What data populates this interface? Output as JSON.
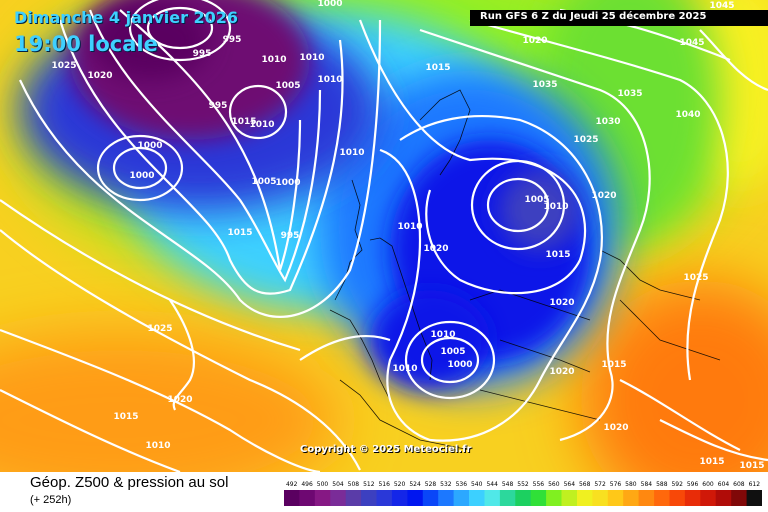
{
  "header": {
    "date": "Dimanche 4 janvier 2026",
    "time": "19:00 locale",
    "run": "Run GFS 6 Z du Jeudi 25 décembre 2025"
  },
  "copyright": "Copyright © 2025 Meteociel.fr",
  "footer": {
    "title": "Géop. Z500 & pression au sol",
    "subtitle": "(+ 252h)"
  },
  "isobar_labels": [
    {
      "id": "l1",
      "text": "1025"
    },
    {
      "id": "l2",
      "text": "1020"
    },
    {
      "id": "l3",
      "text": "995"
    },
    {
      "id": "l4",
      "text": "995"
    },
    {
      "id": "l5",
      "text": "1000"
    },
    {
      "id": "l6",
      "text": "1000"
    },
    {
      "id": "l7",
      "text": "1010"
    },
    {
      "id": "l8",
      "text": "1010"
    },
    {
      "id": "l9",
      "text": "1005"
    },
    {
      "id": "l10",
      "text": "1010"
    },
    {
      "id": "l11",
      "text": "995"
    },
    {
      "id": "l12",
      "text": "1015"
    },
    {
      "id": "l13",
      "text": "1010"
    },
    {
      "id": "l14",
      "text": "1000"
    },
    {
      "id": "l15",
      "text": "995"
    },
    {
      "id": "l16",
      "text": "1005"
    },
    {
      "id": "l17",
      "text": "1000"
    },
    {
      "id": "l18",
      "text": "1015"
    },
    {
      "id": "l19",
      "text": "995"
    },
    {
      "id": "l20",
      "text": "1010"
    },
    {
      "id": "l21",
      "text": "1015"
    },
    {
      "id": "l22",
      "text": "1020"
    },
    {
      "id": "l23",
      "text": "1035"
    },
    {
      "id": "l24",
      "text": "1045"
    },
    {
      "id": "l25",
      "text": "1045"
    },
    {
      "id": "l26",
      "text": "1035"
    },
    {
      "id": "l27",
      "text": "1030"
    },
    {
      "id": "l28",
      "text": "1040"
    },
    {
      "id": "l29",
      "text": "1025"
    },
    {
      "id": "l30",
      "text": "1020"
    },
    {
      "id": "l31",
      "text": "1005"
    },
    {
      "id": "l32",
      "text": "1010"
    },
    {
      "id": "l33",
      "text": "1010"
    },
    {
      "id": "l34",
      "text": "1020"
    },
    {
      "id": "l35",
      "text": "1015"
    },
    {
      "id": "l36",
      "text": "1020"
    },
    {
      "id": "l37",
      "text": "1025"
    },
    {
      "id": "l38",
      "text": "1010"
    },
    {
      "id": "l39",
      "text": "1005"
    },
    {
      "id": "l40",
      "text": "1000"
    },
    {
      "id": "l41",
      "text": "1010"
    },
    {
      "id": "l42",
      "text": "1020"
    },
    {
      "id": "l43",
      "text": "1015"
    },
    {
      "id": "l44",
      "text": "1025"
    },
    {
      "id": "l45",
      "text": "1020"
    },
    {
      "id": "l46",
      "text": "1015"
    },
    {
      "id": "l47",
      "text": "1010"
    },
    {
      "id": "l48",
      "text": "1020"
    },
    {
      "id": "l49",
      "text": "1015"
    },
    {
      "id": "l50",
      "text": "1015"
    }
  ],
  "colorscale": {
    "ticks": [
      "492",
      "496",
      "500",
      "504",
      "508",
      "512",
      "516",
      "520",
      "524",
      "528",
      "532",
      "536",
      "540",
      "544",
      "548",
      "552",
      "556",
      "560",
      "564",
      "568",
      "572",
      "576",
      "580",
      "584",
      "588",
      "592",
      "596",
      "600",
      "604",
      "608",
      "612"
    ],
    "colors": [
      "#5a0060",
      "#6e0872",
      "#861884",
      "#7a2c98",
      "#5a3ca8",
      "#3c40c0",
      "#2a38d8",
      "#1426e8",
      "#0016f0",
      "#0a46f8",
      "#1c78ff",
      "#2ca8ff",
      "#3cd0ff",
      "#50e8e8",
      "#2cd89c",
      "#1cd060",
      "#30e038",
      "#80f020",
      "#c0f020",
      "#f0f020",
      "#f8e020",
      "#ffc818",
      "#ffa814",
      "#ff8810",
      "#ff680c",
      "#f84808",
      "#e82c08",
      "#d01808",
      "#b00c08",
      "#800808",
      "#101010"
    ]
  }
}
